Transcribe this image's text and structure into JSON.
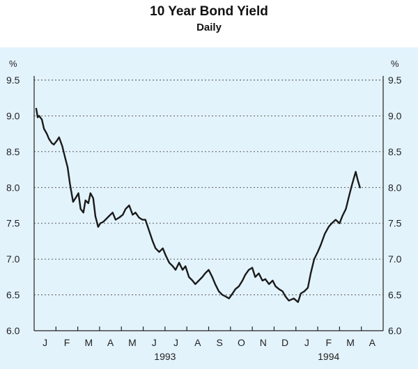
{
  "chart_data": {
    "type": "line",
    "title": "10 Year Bond Yield",
    "subtitle": "Daily",
    "ylabel_left": "%",
    "ylabel_right": "%",
    "ylim": [
      6.0,
      9.5
    ],
    "yticks": [
      "9.5",
      "9.0",
      "8.5",
      "8.0",
      "7.5",
      "7.0",
      "6.5",
      "6.0"
    ],
    "months": [
      "J",
      "F",
      "M",
      "A",
      "M",
      "J",
      "J",
      "A",
      "S",
      "O",
      "N",
      "D",
      "J",
      "F",
      "M",
      "A"
    ],
    "years": [
      "1993",
      "1994"
    ],
    "grid": true,
    "background_color": "#e3f3fc",
    "line_color": "#1a1a1a",
    "series": [
      {
        "x": [
          "1993-01-04",
          "1993-01-06",
          "1993-01-08",
          "1993-01-12",
          "1993-01-15",
          "1993-01-19",
          "1993-01-22",
          "1993-01-26",
          "1993-01-29",
          "1993-02-02",
          "1993-02-05",
          "1993-02-09",
          "1993-02-12",
          "1993-02-16",
          "1993-02-19",
          "1993-02-23",
          "1993-02-26",
          "1993-03-02",
          "1993-03-05",
          "1993-03-09",
          "1993-03-12",
          "1993-03-16",
          "1993-03-19",
          "1993-03-23",
          "1993-03-26",
          "1993-03-30",
          "1993-04-02",
          "1993-04-06",
          "1993-04-09",
          "1993-04-14",
          "1993-04-19",
          "1993-04-23",
          "1993-04-28",
          "1993-05-03",
          "1993-05-07",
          "1993-05-12",
          "1993-05-17",
          "1993-05-21",
          "1993-05-26",
          "1993-05-31",
          "1993-06-04",
          "1993-06-09",
          "1993-06-14",
          "1993-06-18",
          "1993-06-23",
          "1993-06-28",
          "1993-07-02",
          "1993-07-07",
          "1993-07-12",
          "1993-07-16",
          "1993-07-21",
          "1993-07-26",
          "1993-07-30",
          "1993-08-04",
          "1993-08-09",
          "1993-08-13",
          "1993-08-18",
          "1993-08-23",
          "1993-08-27",
          "1993-09-01",
          "1993-09-06",
          "1993-09-10",
          "1993-09-15",
          "1993-09-20",
          "1993-09-24",
          "1993-09-29",
          "1993-10-04",
          "1993-10-08",
          "1993-10-13",
          "1993-10-18",
          "1993-10-22",
          "1993-10-27",
          "1993-11-01",
          "1993-11-05",
          "1993-11-10",
          "1993-11-15",
          "1993-11-19",
          "1993-11-24",
          "1993-11-29",
          "1993-12-03",
          "1993-12-08",
          "1993-12-13",
          "1993-12-17",
          "1993-12-22",
          "1993-12-29",
          "1994-01-04",
          "1994-01-08",
          "1994-01-13",
          "1994-01-18",
          "1994-01-22",
          "1994-01-27",
          "1994-02-01",
          "1994-02-05",
          "1994-02-10",
          "1994-02-15",
          "1994-02-19",
          "1994-02-24",
          "1994-03-01",
          "1994-03-05",
          "1994-03-10",
          "1994-03-15",
          "1994-03-19",
          "1994-03-24",
          "1994-03-27",
          "1994-03-30"
        ],
        "y": [
          9.1,
          8.98,
          9.0,
          8.95,
          8.82,
          8.75,
          8.68,
          8.62,
          8.6,
          8.65,
          8.7,
          8.58,
          8.45,
          8.28,
          8.05,
          7.8,
          7.85,
          7.92,
          7.7,
          7.65,
          7.82,
          7.78,
          7.92,
          7.85,
          7.6,
          7.45,
          7.5,
          7.52,
          7.55,
          7.6,
          7.65,
          7.55,
          7.58,
          7.62,
          7.7,
          7.75,
          7.62,
          7.65,
          7.58,
          7.55,
          7.55,
          7.4,
          7.25,
          7.15,
          7.1,
          7.15,
          7.05,
          6.95,
          6.9,
          6.85,
          6.95,
          6.85,
          6.9,
          6.75,
          6.7,
          6.65,
          6.7,
          6.75,
          6.8,
          6.85,
          6.75,
          6.65,
          6.55,
          6.5,
          6.48,
          6.45,
          6.52,
          6.58,
          6.62,
          6.7,
          6.78,
          6.85,
          6.88,
          6.75,
          6.8,
          6.7,
          6.72,
          6.65,
          6.7,
          6.62,
          6.58,
          6.55,
          6.48,
          6.42,
          6.45,
          6.4,
          6.52,
          6.55,
          6.6,
          6.8,
          7.0,
          7.1,
          7.2,
          7.35,
          7.45,
          7.5,
          7.55,
          7.5,
          7.6,
          7.7,
          7.9,
          8.05,
          8.22,
          8.1,
          8.0
        ]
      }
    ]
  }
}
